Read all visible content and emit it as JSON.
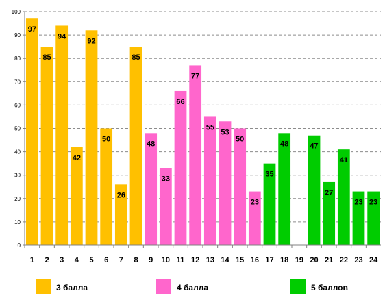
{
  "chart_data": {
    "type": "bar",
    "categories": [
      "1",
      "2",
      "3",
      "4",
      "5",
      "6",
      "7",
      "8",
      "9",
      "10",
      "11",
      "12",
      "13",
      "14",
      "15",
      "16",
      "17",
      "18",
      "19",
      "20",
      "21",
      "22",
      "23",
      "24"
    ],
    "values": [
      97,
      85,
      94,
      42,
      92,
      50,
      26,
      85,
      48,
      33,
      66,
      77,
      55,
      53,
      50,
      23,
      35,
      48,
      null,
      47,
      27,
      41,
      23,
      23
    ],
    "groups": [
      0,
      0,
      0,
      0,
      0,
      0,
      0,
      0,
      1,
      1,
      1,
      1,
      1,
      1,
      1,
      1,
      2,
      2,
      null,
      2,
      2,
      2,
      2,
      2
    ],
    "series": [
      {
        "name": "3 балла",
        "color": "#FFC000"
      },
      {
        "name": "4 балла",
        "color": "#FF66CC"
      },
      {
        "name": "5 баллов",
        "color": "#00CC00"
      }
    ],
    "ylim": [
      0,
      100
    ],
    "yticks": [
      0,
      10,
      20,
      30,
      40,
      50,
      60,
      70,
      80,
      90,
      100
    ],
    "grid": true,
    "legend": "bottom"
  }
}
